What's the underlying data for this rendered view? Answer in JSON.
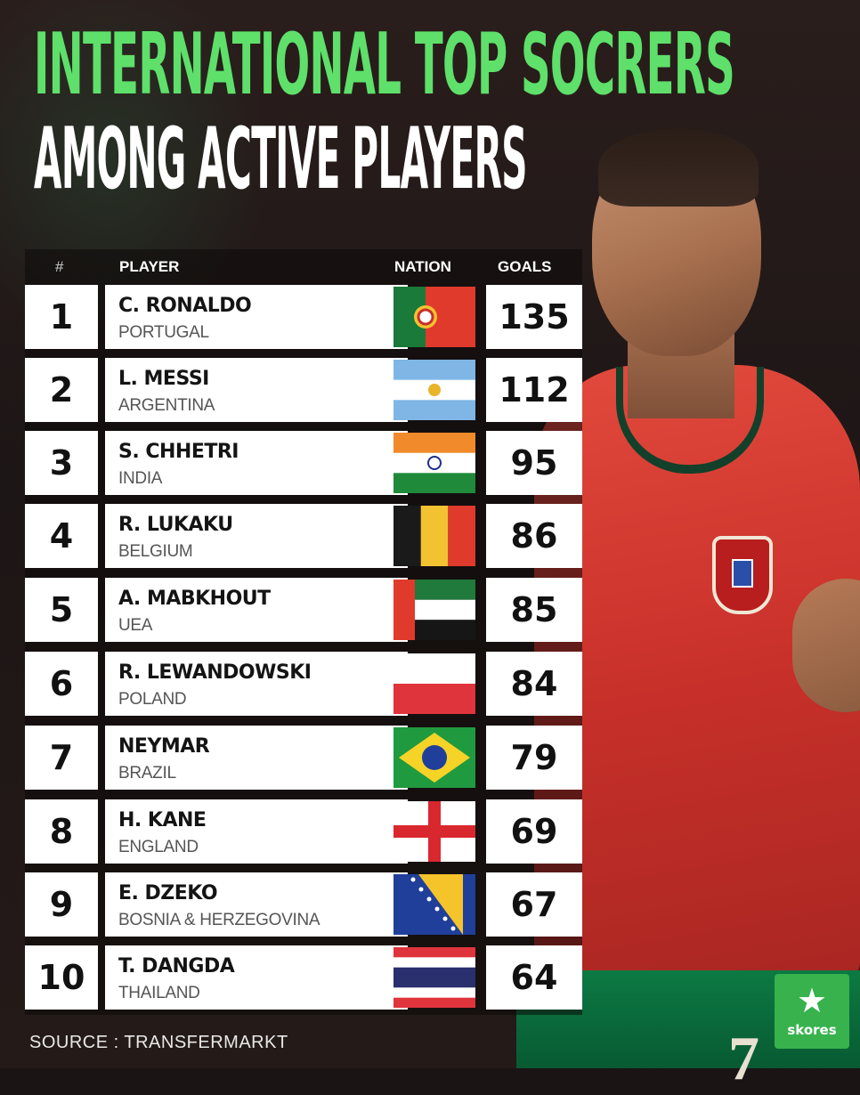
{
  "title": {
    "line1": "INTERNATIONAL TOP SOCRERS",
    "line2": "AMONG ACTIVE PLAYERS"
  },
  "colors": {
    "title_accent": "#5ee06a",
    "row_bg": "#ffffff",
    "logo_green": "#37b24d"
  },
  "table": {
    "headers": {
      "rank": "#",
      "player": "PLAYER",
      "nation": "NATION",
      "goals": "GOALS"
    },
    "rows": [
      {
        "rank": "1",
        "name": "C. RONALDO",
        "country": "PORTUGAL",
        "goals": "135",
        "flag": "portugal-flag"
      },
      {
        "rank": "2",
        "name": "L. MESSI",
        "country": "ARGENTINA",
        "goals": "112",
        "flag": "argentina-flag"
      },
      {
        "rank": "3",
        "name": "S. CHHETRI",
        "country": "INDIA",
        "goals": "95",
        "flag": "india-flag"
      },
      {
        "rank": "4",
        "name": "R. LUKAKU",
        "country": "BELGIUM",
        "goals": "86",
        "flag": "belgium-flag"
      },
      {
        "rank": "5",
        "name": "A. MABKHOUT",
        "country": "UEA",
        "goals": "85",
        "flag": "uae-flag"
      },
      {
        "rank": "6",
        "name": "R. LEWANDOWSKI",
        "country": "POLAND",
        "goals": "84",
        "flag": "poland-flag"
      },
      {
        "rank": "7",
        "name": "NEYMAR",
        "country": "BRAZIL",
        "goals": "79",
        "flag": "brazil-flag"
      },
      {
        "rank": "8",
        "name": "H. KANE",
        "country": "ENGLAND",
        "goals": "69",
        "flag": "england-flag"
      },
      {
        "rank": "9",
        "name": "E. DZEKO",
        "country": "BOSNIA & HERZEGOVINA",
        "goals": "67",
        "flag": "bosnia-flag"
      },
      {
        "rank": "10",
        "name": "T. DANGDA",
        "country": "THAILAND",
        "goals": "64",
        "flag": "thailand-flag"
      }
    ]
  },
  "source": "SOURCE : TRANSFERMARKT",
  "logo": {
    "icon": "star-icon",
    "star": "★",
    "text": "skores"
  },
  "player_photo": {
    "shirt_number": "7"
  }
}
